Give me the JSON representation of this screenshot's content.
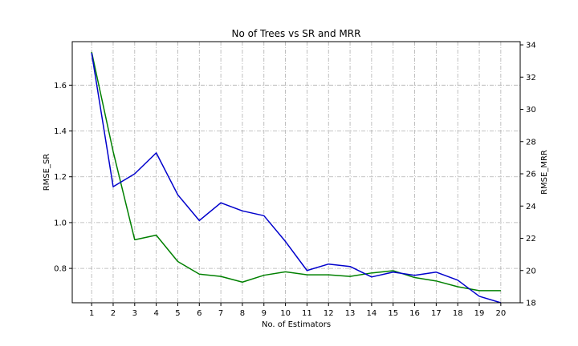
{
  "chart_data": {
    "type": "line",
    "title": "No of Trees vs SR and MRR",
    "xlabel": "No. of Estimators",
    "x": [
      1,
      2,
      3,
      4,
      5,
      6,
      7,
      8,
      9,
      10,
      11,
      12,
      13,
      14,
      15,
      16,
      17,
      18,
      19,
      20
    ],
    "x_ticks": [
      "1",
      "2",
      "3",
      "4",
      "5",
      "6",
      "7",
      "8",
      "9",
      "10",
      "11",
      "12",
      "13",
      "14",
      "15",
      "16",
      "17",
      "18",
      "19",
      "20"
    ],
    "xlim": [
      0.1,
      20.9
    ],
    "grid": true,
    "left_axis": {
      "label": "RMSE_SR",
      "color": "#008000",
      "ylim": [
        0.65,
        1.79
      ],
      "ticks": [
        0.8,
        1.0,
        1.2,
        1.4,
        1.6
      ],
      "tick_labels": [
        "0.8",
        "1.0",
        "1.2",
        "1.4",
        "1.6"
      ]
    },
    "right_axis": {
      "label": "RMSE_MRR",
      "color": "#0000cc",
      "ylim": [
        18.0,
        34.2
      ],
      "ticks": [
        18,
        20,
        22,
        24,
        26,
        28,
        30,
        32,
        34
      ],
      "tick_labels": [
        "18",
        "20",
        "22",
        "24",
        "26",
        "28",
        "30",
        "32",
        "34"
      ]
    },
    "series": [
      {
        "axis": "left",
        "color": "#008000",
        "values": [
          1.745,
          1.31,
          0.925,
          0.945,
          0.83,
          0.775,
          0.765,
          0.74,
          0.77,
          0.785,
          0.772,
          0.772,
          0.765,
          0.78,
          0.79,
          0.76,
          0.745,
          0.72,
          0.703,
          0.703
        ]
      },
      {
        "axis": "right",
        "color": "#0000cc",
        "values": [
          33.5,
          25.2,
          26.0,
          27.3,
          24.7,
          23.1,
          24.2,
          23.7,
          23.4,
          21.8,
          20.0,
          20.4,
          20.25,
          19.6,
          19.9,
          19.7,
          19.9,
          19.4,
          18.4,
          18.0
        ]
      }
    ]
  }
}
